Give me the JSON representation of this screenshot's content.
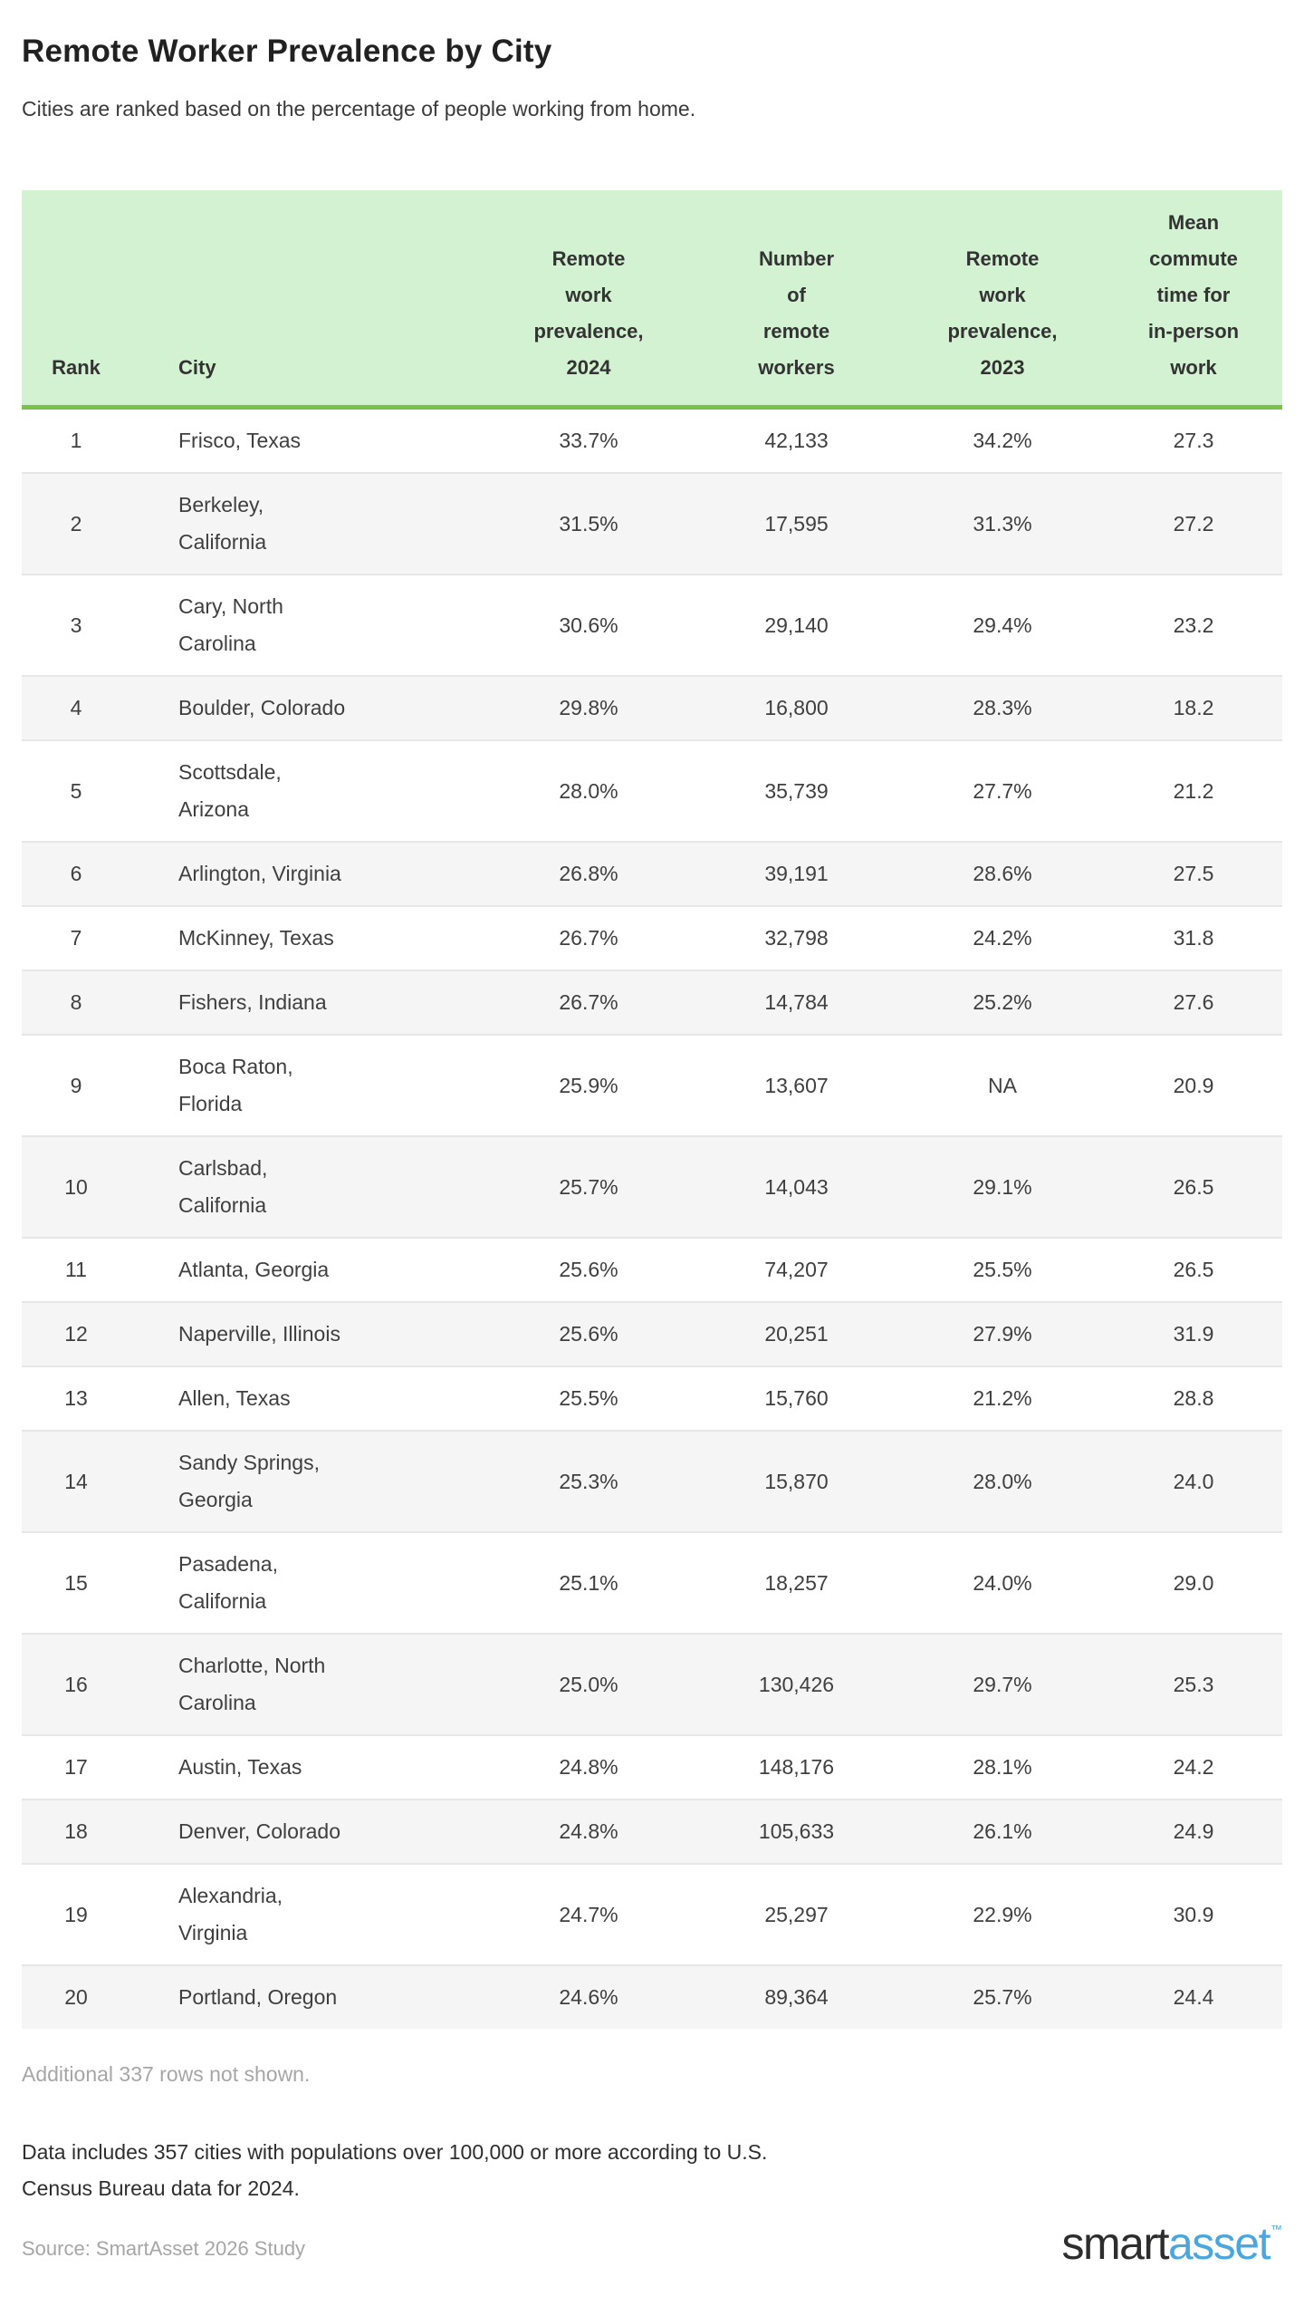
{
  "page": {
    "title": "Remote Worker Prevalence by City",
    "subtitle": "Cities are ranked based on the percentage of people working from home.",
    "additional_note": "Additional 337 rows not shown.",
    "data_note": "Data includes 357 cities with populations over 100,000 or more according to U.S.\nCensus Bureau data for 2024.",
    "source": "Source: SmartAsset 2026 Study",
    "logo": {
      "smart": "smart",
      "asset": "asset",
      "tm": "™"
    }
  },
  "colors": {
    "header_bg": "#d2f2d1",
    "header_border_green": "#7ac14a",
    "alt_row_bg": "#f5f5f5",
    "row_divider": "#e7e7e7",
    "logo_blue": "#4aa7de",
    "muted_text": "#a6a6a6",
    "body_text": "#3f3f3f",
    "title_text": "#212121"
  },
  "table": {
    "header_labels": [
      "Rank",
      "City",
      "Remote\nwork\nprevalence,\n2024",
      "Number\nof\nremote\nworkers",
      "Remote\nwork\nprevalence,\n2023",
      "Mean\ncommute\ntime for\nin-person\nwork"
    ],
    "rows": [
      {
        "rank": "1",
        "city": "Frisco, Texas",
        "prev2024": "33.7%",
        "workers": "42,133",
        "prev2023": "34.2%",
        "commute": "27.3"
      },
      {
        "rank": "2",
        "city": "Berkeley,\nCalifornia",
        "prev2024": "31.5%",
        "workers": "17,595",
        "prev2023": "31.3%",
        "commute": "27.2"
      },
      {
        "rank": "3",
        "city": "Cary, North\nCarolina",
        "prev2024": "30.6%",
        "workers": "29,140",
        "prev2023": "29.4%",
        "commute": "23.2"
      },
      {
        "rank": "4",
        "city": "Boulder, Colorado",
        "prev2024": "29.8%",
        "workers": "16,800",
        "prev2023": "28.3%",
        "commute": "18.2"
      },
      {
        "rank": "5",
        "city": "Scottsdale,\nArizona",
        "prev2024": "28.0%",
        "workers": "35,739",
        "prev2023": "27.7%",
        "commute": "21.2"
      },
      {
        "rank": "6",
        "city": "Arlington, Virginia",
        "prev2024": "26.8%",
        "workers": "39,191",
        "prev2023": "28.6%",
        "commute": "27.5"
      },
      {
        "rank": "7",
        "city": "McKinney, Texas",
        "prev2024": "26.7%",
        "workers": "32,798",
        "prev2023": "24.2%",
        "commute": "31.8"
      },
      {
        "rank": "8",
        "city": "Fishers, Indiana",
        "prev2024": "26.7%",
        "workers": "14,784",
        "prev2023": "25.2%",
        "commute": "27.6"
      },
      {
        "rank": "9",
        "city": "Boca Raton,\nFlorida",
        "prev2024": "25.9%",
        "workers": "13,607",
        "prev2023": "NA",
        "commute": "20.9"
      },
      {
        "rank": "10",
        "city": "Carlsbad,\nCalifornia",
        "prev2024": "25.7%",
        "workers": "14,043",
        "prev2023": "29.1%",
        "commute": "26.5"
      },
      {
        "rank": "11",
        "city": "Atlanta, Georgia",
        "prev2024": "25.6%",
        "workers": "74,207",
        "prev2023": "25.5%",
        "commute": "26.5"
      },
      {
        "rank": "12",
        "city": "Naperville, Illinois",
        "prev2024": "25.6%",
        "workers": "20,251",
        "prev2023": "27.9%",
        "commute": "31.9"
      },
      {
        "rank": "13",
        "city": "Allen, Texas",
        "prev2024": "25.5%",
        "workers": "15,760",
        "prev2023": "21.2%",
        "commute": "28.8"
      },
      {
        "rank": "14",
        "city": "Sandy Springs,\nGeorgia",
        "prev2024": "25.3%",
        "workers": "15,870",
        "prev2023": "28.0%",
        "commute": "24.0"
      },
      {
        "rank": "15",
        "city": "Pasadena,\nCalifornia",
        "prev2024": "25.1%",
        "workers": "18,257",
        "prev2023": "24.0%",
        "commute": "29.0"
      },
      {
        "rank": "16",
        "city": "Charlotte, North\nCarolina",
        "prev2024": "25.0%",
        "workers": "130,426",
        "prev2023": "29.7%",
        "commute": "25.3"
      },
      {
        "rank": "17",
        "city": "Austin, Texas",
        "prev2024": "24.8%",
        "workers": "148,176",
        "prev2023": "28.1%",
        "commute": "24.2"
      },
      {
        "rank": "18",
        "city": "Denver, Colorado",
        "prev2024": "24.8%",
        "workers": "105,633",
        "prev2023": "26.1%",
        "commute": "24.9"
      },
      {
        "rank": "19",
        "city": "Alexandria,\nVirginia",
        "prev2024": "24.7%",
        "workers": "25,297",
        "prev2023": "22.9%",
        "commute": "30.9"
      },
      {
        "rank": "20",
        "city": "Portland, Oregon",
        "prev2024": "24.6%",
        "workers": "89,364",
        "prev2023": "25.7%",
        "commute": "24.4"
      }
    ]
  },
  "chart_data": {
    "type": "table",
    "title": "Remote Worker Prevalence by City",
    "subtitle": "Cities are ranked based on the percentage of people working from home.",
    "columns": [
      "Rank",
      "City",
      "Remote work prevalence, 2024",
      "Number of remote workers",
      "Remote work prevalence, 2023",
      "Mean commute time for in-person work"
    ],
    "rows": [
      [
        1,
        "Frisco, Texas",
        "33.7%",
        "42,133",
        "34.2%",
        27.3
      ],
      [
        2,
        "Berkeley, California",
        "31.5%",
        "17,595",
        "31.3%",
        27.2
      ],
      [
        3,
        "Cary, North Carolina",
        "30.6%",
        "29,140",
        "29.4%",
        23.2
      ],
      [
        4,
        "Boulder, Colorado",
        "29.8%",
        "16,800",
        "28.3%",
        18.2
      ],
      [
        5,
        "Scottsdale, Arizona",
        "28.0%",
        "35,739",
        "27.7%",
        21.2
      ],
      [
        6,
        "Arlington, Virginia",
        "26.8%",
        "39,191",
        "28.6%",
        27.5
      ],
      [
        7,
        "McKinney, Texas",
        "26.7%",
        "32,798",
        "24.2%",
        31.8
      ],
      [
        8,
        "Fishers, Indiana",
        "26.7%",
        "14,784",
        "25.2%",
        27.6
      ],
      [
        9,
        "Boca Raton, Florida",
        "25.9%",
        "13,607",
        "NA",
        20.9
      ],
      [
        10,
        "Carlsbad, California",
        "25.7%",
        "14,043",
        "29.1%",
        26.5
      ],
      [
        11,
        "Atlanta, Georgia",
        "25.6%",
        "74,207",
        "25.5%",
        26.5
      ],
      [
        12,
        "Naperville, Illinois",
        "25.6%",
        "20,251",
        "27.9%",
        31.9
      ],
      [
        13,
        "Allen, Texas",
        "25.5%",
        "15,760",
        "21.2%",
        28.8
      ],
      [
        14,
        "Sandy Springs, Georgia",
        "25.3%",
        "15,870",
        "28.0%",
        24.0
      ],
      [
        15,
        "Pasadena, California",
        "25.1%",
        "18,257",
        "24.0%",
        29.0
      ],
      [
        16,
        "Charlotte, North Carolina",
        "25.0%",
        "130,426",
        "29.7%",
        25.3
      ],
      [
        17,
        "Austin, Texas",
        "24.8%",
        "148,176",
        "28.1%",
        24.2
      ],
      [
        18,
        "Denver, Colorado",
        "24.8%",
        "105,633",
        "26.1%",
        24.9
      ],
      [
        19,
        "Alexandria, Virginia",
        "24.7%",
        "25,297",
        "22.9%",
        30.9
      ],
      [
        20,
        "Portland, Oregon",
        "24.6%",
        "89,364",
        "25.7%",
        24.4
      ]
    ],
    "notes": [
      "Additional 337 rows not shown.",
      "Data includes 357 cities with populations over 100,000 or more according to U.S. Census Bureau data for 2024."
    ],
    "source": "Source: SmartAsset 2026 Study"
  }
}
